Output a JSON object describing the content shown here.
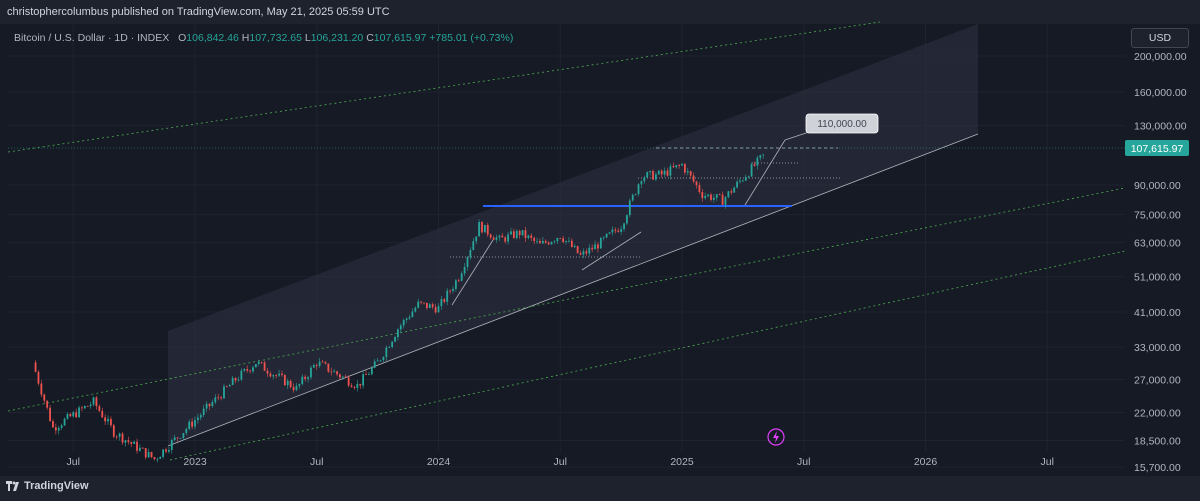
{
  "header": {
    "publisher": "christophercolumbus published on TradingView.com, May 21, 2025 05:59 UTC"
  },
  "legend": {
    "symbol": "Bitcoin / U.S. Dollar · 1D · INDEX",
    "o_label": "O",
    "o": "106,842.46",
    "h_label": "H",
    "h": "107,732.65",
    "l_label": "L",
    "l": "106,231.20",
    "c_label": "C",
    "c": "107,615.97",
    "change": "+785.01 (+0.73%)"
  },
  "currency_button": "USD",
  "footer": {
    "brand": "TradingView"
  },
  "colors": {
    "up": "#26a69a",
    "down": "#ef5350",
    "channel": "#2a2e39",
    "blue_line": "#2962ff",
    "green_dotted": "#4caf50",
    "price_badge": "#26a69a"
  },
  "icons": {
    "flash": "lightning-icon",
    "logo": "tradingview-logo-icon"
  },
  "chart_data": {
    "type": "candlestick",
    "y_scale": "log",
    "ylim": [
      15000,
      250000
    ],
    "y_ticks": [
      "200,000.00",
      "160,000.00",
      "130,000.00",
      "90,000.00",
      "75,000.00",
      "63,000.00",
      "51,000.00",
      "41,000.00",
      "33,000.00",
      "27,000.00",
      "22,000.00",
      "18,500.00",
      "15,700.00"
    ],
    "x_ticks": [
      "Jul",
      "2023",
      "Jul",
      "2024",
      "Jul",
      "2025",
      "Jul",
      "2026",
      "Jul"
    ],
    "last_price": "107,615.97",
    "target_label": "110,000.00",
    "series": [
      {
        "x": "2022-05",
        "y": 30000
      },
      {
        "x": "2022-06",
        "y": 20000
      },
      {
        "x": "2022-08",
        "y": 23500
      },
      {
        "x": "2022-09",
        "y": 19500
      },
      {
        "x": "2022-11",
        "y": 16500
      },
      {
        "x": "2023-01",
        "y": 21000
      },
      {
        "x": "2023-03",
        "y": 27000
      },
      {
        "x": "2023-04",
        "y": 30000
      },
      {
        "x": "2023-06",
        "y": 25500
      },
      {
        "x": "2023-07",
        "y": 30000
      },
      {
        "x": "2023-09",
        "y": 26000
      },
      {
        "x": "2023-10",
        "y": 30000
      },
      {
        "x": "2023-11",
        "y": 37000
      },
      {
        "x": "2023-12",
        "y": 43000
      },
      {
        "x": "2024-01",
        "y": 42000
      },
      {
        "x": "2024-02",
        "y": 51000
      },
      {
        "x": "2024-03",
        "y": 70000
      },
      {
        "x": "2024-04",
        "y": 64000
      },
      {
        "x": "2024-05",
        "y": 67000
      },
      {
        "x": "2024-06",
        "y": 62000
      },
      {
        "x": "2024-07",
        "y": 66000
      },
      {
        "x": "2024-08",
        "y": 58000
      },
      {
        "x": "2024-09",
        "y": 63000
      },
      {
        "x": "2024-10",
        "y": 70000
      },
      {
        "x": "2024-11",
        "y": 95000
      },
      {
        "x": "2024-12",
        "y": 96000
      },
      {
        "x": "2025-01",
        "y": 102000
      },
      {
        "x": "2025-02",
        "y": 85000
      },
      {
        "x": "2025-03",
        "y": 82000
      },
      {
        "x": "2025-04",
        "y": 94000
      },
      {
        "x": "2025-05",
        "y": 107615.97
      }
    ]
  }
}
